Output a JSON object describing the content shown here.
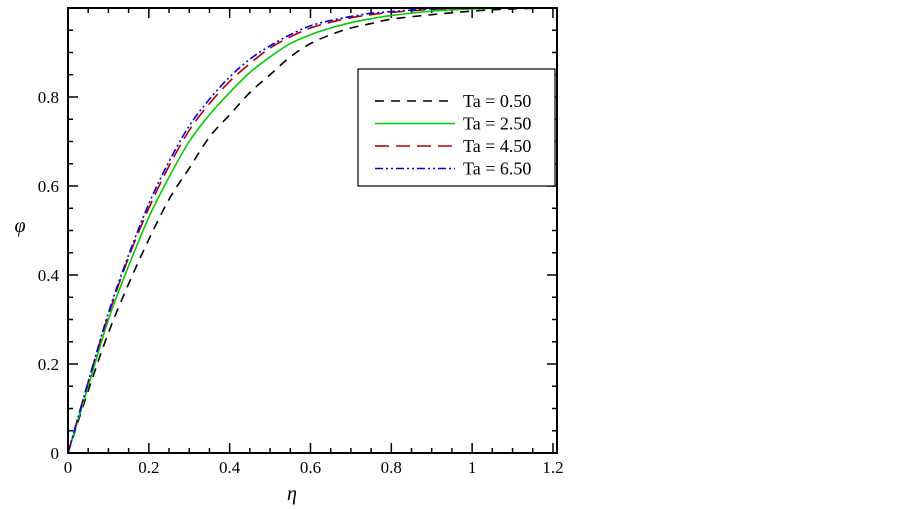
{
  "chart_data": {
    "type": "line",
    "title": "",
    "xlabel": "η",
    "ylabel": "φ",
    "xlim": [
      0,
      1.21
    ],
    "ylim": [
      0,
      1.0
    ],
    "xticks": [
      0,
      0.2,
      0.4,
      0.6,
      0.8,
      1,
      1.2
    ],
    "xtick_labels": [
      "0",
      "0.2",
      "0.4",
      "0.6",
      "0.8",
      "1",
      "1.2"
    ],
    "yticks": [
      0,
      0.2,
      0.4,
      0.6,
      0.8
    ],
    "ytick_labels": [
      "0",
      "0.2",
      "0.4",
      "0.6",
      "0.8"
    ],
    "grid": false,
    "legend_position": "upper-right",
    "x": [
      0,
      0.05,
      0.1,
      0.15,
      0.2,
      0.25,
      0.3,
      0.35,
      0.4,
      0.45,
      0.5,
      0.55,
      0.6,
      0.65,
      0.7,
      0.75,
      0.8,
      0.9,
      1.0,
      1.1,
      1.2
    ],
    "series": [
      {
        "name": "Ta = 0.50",
        "color": "#000000",
        "dash": "dashed",
        "values": [
          0,
          0.14,
          0.27,
          0.38,
          0.48,
          0.57,
          0.64,
          0.71,
          0.76,
          0.81,
          0.85,
          0.89,
          0.92,
          0.94,
          0.955,
          0.965,
          0.975,
          0.985,
          0.993,
          0.998,
          1.0
        ]
      },
      {
        "name": "Ta = 2.50",
        "color": "#00cc00",
        "dash": "solid",
        "values": [
          0,
          0.15,
          0.3,
          0.42,
          0.53,
          0.62,
          0.7,
          0.76,
          0.81,
          0.855,
          0.89,
          0.92,
          0.94,
          0.955,
          0.967,
          0.976,
          0.983,
          0.993,
          0.998,
          1.0,
          1.0
        ]
      },
      {
        "name": "Ta = 4.50",
        "color": "#b00000",
        "dash": "longdash",
        "values": [
          0,
          0.16,
          0.31,
          0.44,
          0.55,
          0.645,
          0.725,
          0.785,
          0.835,
          0.875,
          0.91,
          0.935,
          0.955,
          0.968,
          0.978,
          0.985,
          0.99,
          0.997,
          1.0,
          1.0,
          1.0
        ]
      },
      {
        "name": "Ta = 6.50",
        "color": "#0000ee",
        "dash": "dashdotdot",
        "values": [
          0,
          0.16,
          0.315,
          0.445,
          0.56,
          0.655,
          0.735,
          0.795,
          0.845,
          0.885,
          0.915,
          0.94,
          0.96,
          0.972,
          0.981,
          0.988,
          0.992,
          0.998,
          1.0,
          1.0,
          1.0
        ]
      }
    ]
  }
}
